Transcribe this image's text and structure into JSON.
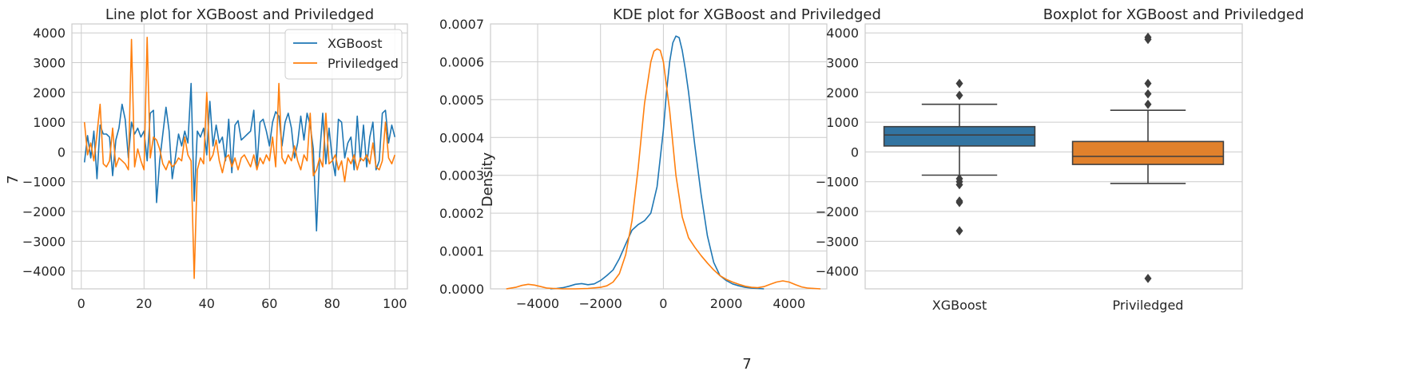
{
  "colors": {
    "xgboost": "#1f77b4",
    "priviledged": "#ff7f0e",
    "grid": "#cccccc",
    "box_line": "#3f3f3f",
    "box_xgb": "#3274a1",
    "box_priv": "#e1812c"
  },
  "chart_data": [
    {
      "type": "line",
      "title": "Line plot for XGBoost and Priviledged",
      "xlabel": "",
      "ylabel": "7",
      "xlim": [
        -3,
        104
      ],
      "ylim": [
        -4600,
        4300
      ],
      "xticks": [
        0,
        20,
        40,
        60,
        80,
        100
      ],
      "yticks": [
        -4000,
        -3000,
        -2000,
        -1000,
        0,
        1000,
        2000,
        3000,
        4000
      ],
      "legend": "top-right",
      "x": [
        1,
        2,
        3,
        4,
        5,
        6,
        7,
        8,
        9,
        10,
        11,
        12,
        13,
        14,
        15,
        16,
        17,
        18,
        19,
        20,
        21,
        22,
        23,
        24,
        25,
        26,
        27,
        28,
        29,
        30,
        31,
        32,
        33,
        34,
        35,
        36,
        37,
        38,
        39,
        40,
        41,
        42,
        43,
        44,
        45,
        46,
        47,
        48,
        49,
        50,
        51,
        52,
        53,
        54,
        55,
        56,
        57,
        58,
        59,
        60,
        61,
        62,
        63,
        64,
        65,
        66,
        67,
        68,
        69,
        70,
        71,
        72,
        73,
        74,
        75,
        76,
        77,
        78,
        79,
        80,
        81,
        82,
        83,
        84,
        85,
        86,
        87,
        88,
        89,
        90,
        91,
        92,
        93,
        94,
        95,
        96,
        97,
        98,
        99,
        100
      ],
      "series": [
        {
          "name": "XGBoost",
          "values": [
            -350,
            550,
            -200,
            700,
            -900,
            900,
            600,
            600,
            500,
            -800,
            400,
            800,
            1600,
            1100,
            -200,
            1000,
            600,
            800,
            500,
            700,
            -300,
            1300,
            1400,
            -1700,
            -300,
            600,
            1500,
            700,
            -900,
            -200,
            600,
            200,
            700,
            300,
            2300,
            -1650,
            700,
            500,
            800,
            -100,
            1700,
            200,
            900,
            300,
            500,
            -300,
            1100,
            -700,
            900,
            1050,
            400,
            500,
            600,
            700,
            1400,
            -500,
            1000,
            1100,
            700,
            200,
            1000,
            1350,
            1200,
            200,
            1000,
            1300,
            800,
            -200,
            300,
            1200,
            400,
            1300,
            900,
            100,
            -2650,
            -100,
            1300,
            -400,
            800,
            -200,
            -800,
            1100,
            1000,
            -200,
            300,
            500,
            -600,
            1200,
            -300,
            900,
            -500,
            500,
            1000,
            -600,
            -300,
            1300,
            1400,
            300,
            900,
            500
          ]
        },
        {
          "name": "Priviledged",
          "values": [
            1000,
            -100,
            300,
            -300,
            600,
            1600,
            -400,
            -500,
            -300,
            800,
            -500,
            -200,
            -300,
            -400,
            -600,
            3780,
            -500,
            100,
            -300,
            -600,
            3850,
            -200,
            500,
            400,
            100,
            -400,
            -600,
            -300,
            -500,
            -400,
            -200,
            -300,
            500,
            -100,
            -300,
            -4250,
            -600,
            -200,
            -400,
            2000,
            -300,
            -100,
            400,
            -300,
            -700,
            -200,
            -100,
            -500,
            -200,
            -600,
            -200,
            -100,
            -300,
            -500,
            -100,
            -600,
            -200,
            -400,
            -100,
            -300,
            500,
            -500,
            2300,
            -200,
            -400,
            -100,
            -300,
            200,
            -300,
            -600,
            -100,
            -300,
            1300,
            -800,
            -600,
            -200,
            -500,
            1300,
            -400,
            -300,
            -100,
            -600,
            -300,
            -1000,
            -200,
            -400,
            -100,
            -600,
            -200,
            -300,
            -100,
            -400,
            300,
            -500,
            -600,
            -300,
            1000,
            -200,
            -400,
            -100
          ]
        }
      ]
    },
    {
      "type": "area",
      "title": "KDE plot for XGBoost and Priviledged",
      "xlabel": "7",
      "ylabel": "Density",
      "xlim": [
        -5500,
        5200
      ],
      "ylim": [
        0,
        0.0007
      ],
      "xticks": [
        -4000,
        -2000,
        0,
        2000,
        4000
      ],
      "yticks": [
        0,
        0.0001,
        0.0002,
        0.0003,
        0.0004,
        0.0005,
        0.0006,
        0.0007
      ],
      "ytick_labels": [
        "0.0000",
        "0.0001",
        "0.0002",
        "0.0003",
        "0.0004",
        "0.0005",
        "0.0006",
        "0.0007"
      ],
      "series": [
        {
          "name": "XGBoost",
          "x": [
            -3600,
            -3400,
            -3200,
            -3000,
            -2800,
            -2600,
            -2400,
            -2200,
            -2000,
            -1800,
            -1600,
            -1400,
            -1200,
            -1000,
            -800,
            -600,
            -400,
            -200,
            0,
            100,
            200,
            300,
            400,
            500,
            600,
            700,
            800,
            900,
            1000,
            1200,
            1400,
            1600,
            1800,
            2000,
            2200,
            2400,
            2600,
            2800,
            3000,
            3200
          ],
          "values": [
            0,
            1e-06,
            3e-06,
            7e-06,
            1.2e-05,
            1.4e-05,
            1.1e-05,
            1.3e-05,
            2.2e-05,
            3.5e-05,
            5e-05,
            8e-05,
            0.000118,
            0.000155,
            0.00017,
            0.00018,
            0.0002,
            0.00027,
            0.00042,
            0.00052,
            0.0006,
            0.00065,
            0.000668,
            0.000664,
            0.00063,
            0.00058,
            0.00052,
            0.00045,
            0.00038,
            0.00025,
            0.00014,
            7e-05,
            3.5e-05,
            2.2e-05,
            1.3e-05,
            8e-06,
            4e-06,
            2e-06,
            1e-06,
            0
          ]
        },
        {
          "name": "Priviledged",
          "x": [
            -5000,
            -4700,
            -4500,
            -4300,
            -4100,
            -3900,
            -3700,
            -3500,
            -3200,
            -2800,
            -2400,
            -2000,
            -1800,
            -1600,
            -1400,
            -1200,
            -1000,
            -800,
            -600,
            -400,
            -300,
            -200,
            -100,
            0,
            200,
            400,
            600,
            800,
            1000,
            1200,
            1400,
            1600,
            1800,
            2000,
            2200,
            2400,
            2600,
            2800,
            3000,
            3200,
            3400,
            3600,
            3800,
            4000,
            4200,
            4400,
            4600,
            4800,
            5000
          ],
          "values": [
            0,
            4e-06,
            9e-06,
            1.2e-05,
            1e-05,
            6e-06,
            2e-06,
            1e-06,
            0,
            0,
            1e-06,
            4e-06,
            8e-06,
            1.8e-05,
            4e-05,
            9e-05,
            0.00018,
            0.00032,
            0.00049,
            0.0006,
            0.000628,
            0.000634,
            0.00063,
            0.0006,
            0.00047,
            0.0003,
            0.00019,
            0.000135,
            0.00011,
            8.8e-05,
            6.8e-05,
            5e-05,
            3.5e-05,
            2.5e-05,
            1.8e-05,
            1.2e-05,
            7e-06,
            4e-06,
            3e-06,
            6e-06,
            1.2e-05,
            1.8e-05,
            2.1e-05,
            1.8e-05,
            1.1e-05,
            5e-06,
            2e-06,
            1e-06,
            0
          ]
        }
      ]
    },
    {
      "type": "box",
      "title": "Boxplot for XGBoost and Priviledged",
      "xlabel": "",
      "ylabel": "",
      "ylim": [
        -4600,
        4300
      ],
      "yticks": [
        -4000,
        -3000,
        -2000,
        -1000,
        0,
        1000,
        2000,
        3000,
        4000
      ],
      "categories": [
        "XGBoost",
        "Priviledged"
      ],
      "boxes": [
        {
          "name": "XGBoost",
          "whisker_low": -780,
          "q1": 200,
          "median": 570,
          "q3": 850,
          "whisker_high": 1600,
          "outliers": [
            2300,
            1900,
            -900,
            -1000,
            -1100,
            -1650,
            -1700,
            -2650
          ]
        },
        {
          "name": "Priviledged",
          "whisker_low": -1060,
          "q1": -420,
          "median": -150,
          "q3": 350,
          "whisker_high": 1400,
          "outliers": [
            3850,
            3780,
            2300,
            1950,
            1600,
            -4250
          ]
        }
      ]
    }
  ]
}
